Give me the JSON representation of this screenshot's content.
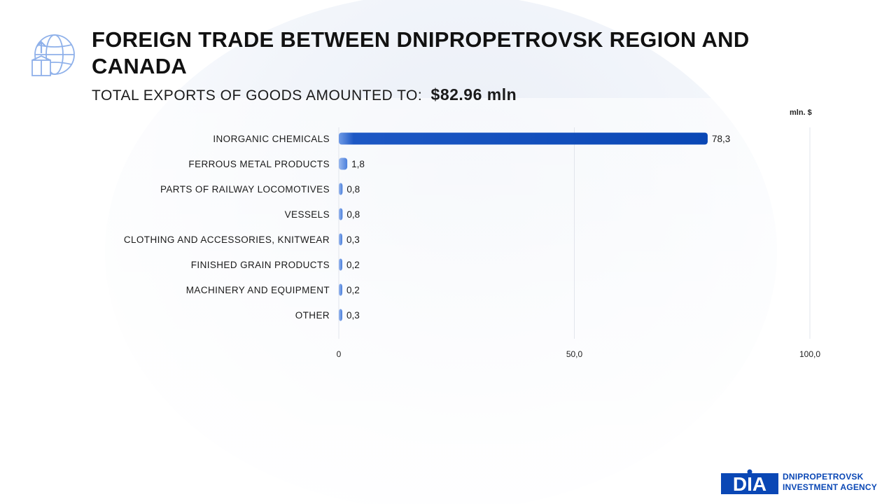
{
  "header": {
    "title": "FOREIGN TRADE BETWEEN DNIPROPETROVSK REGION AND CANADA",
    "subtitle_label": "TOTAL EXPORTS OF GOODS AMOUNTED TO:",
    "subtitle_amount": "$82.96 mln"
  },
  "logo": {
    "mark": "DIA",
    "line1": "DNIPROPETROVSK",
    "line2": "INVESTMENT AGENCY"
  },
  "icons": {
    "header_icon": "globe-export-icon"
  },
  "colors": {
    "bar_dark": "#0a47b5",
    "bar_light": "#6e9ae6",
    "grid": "#e2e5ec",
    "brand": "#0a47b5"
  },
  "chart_data": {
    "type": "bar",
    "orientation": "horizontal",
    "title": "FOREIGN TRADE BETWEEN DNIPROPETROVSK REGION AND CANADA",
    "unit_label": "mln. $",
    "categories": [
      "INORGANIC CHEMICALS",
      "FERROUS METAL PRODUCTS",
      "PARTS OF RAILWAY LOCOMOTIVES",
      "VESSELS",
      "CLOTHING AND ACCESSORIES, KNITWEAR",
      "FINISHED GRAIN PRODUCTS",
      "MACHINERY AND EQUIPMENT",
      "OTHER"
    ],
    "values": [
      78.3,
      1.8,
      0.8,
      0.8,
      0.3,
      0.2,
      0.2,
      0.3
    ],
    "value_labels": [
      "78,3",
      "1,8",
      "0,8",
      "0,8",
      "0,3",
      "0,2",
      "0,2",
      "0,3"
    ],
    "xlim": [
      0,
      100
    ],
    "xticks": [
      0,
      50,
      100
    ],
    "xtick_labels": [
      "0",
      "50,0",
      "100,0"
    ],
    "grid": true
  }
}
